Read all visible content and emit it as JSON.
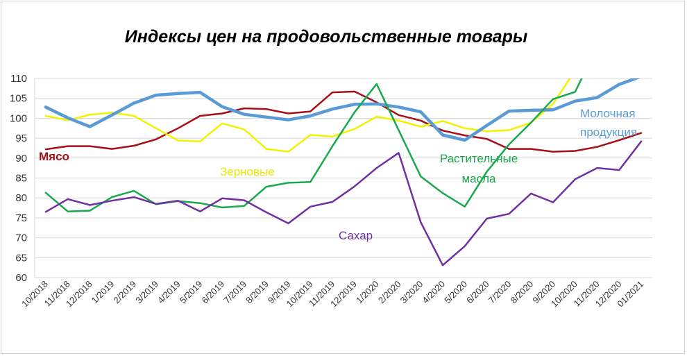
{
  "chart_data": {
    "type": "line",
    "title": "Индексы цен на продовольственные  товары",
    "ylim": [
      60,
      110
    ],
    "yticks": [
      60,
      65,
      70,
      75,
      80,
      85,
      90,
      95,
      100,
      105,
      110
    ],
    "grid": true,
    "categories": [
      "10/2018",
      "11/2018",
      "12/2018",
      "1/2019",
      "2/2019",
      "3/2019",
      "4/2019",
      "5/2019",
      "6/2019",
      "7/2019",
      "8/2019",
      "9/2019",
      "10/2019",
      "11/2019",
      "12/2019",
      "1/2020",
      "2/2020",
      "3/2020",
      "4/2020",
      "5/2020",
      "6/2020",
      "7/2020",
      "8/2020",
      "9/2020",
      "10/2020",
      "11/2020",
      "12/2020",
      "01/2021"
    ],
    "series": [
      {
        "name": "Мясо",
        "color": "#a50f15",
        "width": 2.5,
        "values": [
          92.2,
          93.0,
          93.0,
          92.3,
          93.1,
          94.7,
          97.5,
          100.6,
          101.2,
          102.5,
          102.3,
          101.2,
          101.7,
          106.5,
          106.7,
          104.0,
          100.8,
          99.4,
          96.9,
          95.7,
          94.8,
          92.3,
          92.3,
          91.6,
          91.8,
          92.8,
          94.5,
          96.3
        ]
      },
      {
        "name": "Зерновые",
        "color": "#f2f200",
        "width": 2.5,
        "values": [
          100.6,
          99.5,
          100.9,
          101.4,
          100.6,
          97.5,
          94.4,
          94.2,
          98.7,
          97.2,
          92.3,
          91.6,
          95.8,
          95.4,
          97.3,
          100.4,
          99.4,
          97.9,
          99.3,
          97.5,
          96.7,
          97.0,
          98.9,
          103.6,
          112.0,
          null,
          null,
          null
        ]
      },
      {
        "name": "Молочная продукция",
        "color": "#5b9bd5",
        "width": 4.5,
        "values": [
          102.8,
          100.1,
          97.9,
          100.8,
          103.8,
          105.8,
          106.2,
          106.5,
          102.9,
          101.0,
          100.3,
          99.6,
          100.6,
          102.3,
          103.5,
          103.6,
          102.8,
          101.6,
          95.8,
          94.5,
          98.2,
          101.8,
          102.0,
          102.1,
          104.3,
          105.2,
          108.5,
          110.5
        ]
      },
      {
        "name": "Растительные масла",
        "color": "#1aa84d",
        "width": 2.5,
        "values": [
          81.3,
          76.6,
          76.8,
          80.2,
          81.8,
          78.4,
          79.2,
          78.7,
          77.6,
          78.0,
          82.8,
          83.8,
          84.0,
          93.0,
          101.5,
          108.6,
          97.0,
          85.4,
          81.2,
          77.8,
          86.6,
          93.4,
          98.9,
          104.8,
          106.6,
          118.0,
          null,
          null
        ]
      },
      {
        "name": "Сахар",
        "color": "#7030a0",
        "width": 2.5,
        "values": [
          76.5,
          79.7,
          78.2,
          79.3,
          80.2,
          78.5,
          79.3,
          76.6,
          79.9,
          79.4,
          76.4,
          73.6,
          77.8,
          79.0,
          82.9,
          87.5,
          91.3,
          73.9,
          63.1,
          67.9,
          74.8,
          76.0,
          81.1,
          78.9,
          84.7,
          87.5,
          87.0,
          94.2
        ]
      }
    ],
    "labels": [
      {
        "series": "Мясо",
        "text": "Мясо"
      },
      {
        "series": "Зерновые",
        "text": "Зерновые"
      },
      {
        "series": "Молочная продукция",
        "lines": [
          "Молочная",
          "продукция"
        ]
      },
      {
        "series": "Растительные масла",
        "lines": [
          "Растительные",
          "масла"
        ]
      },
      {
        "series": "Сахар",
        "text": "Сахар"
      }
    ]
  }
}
